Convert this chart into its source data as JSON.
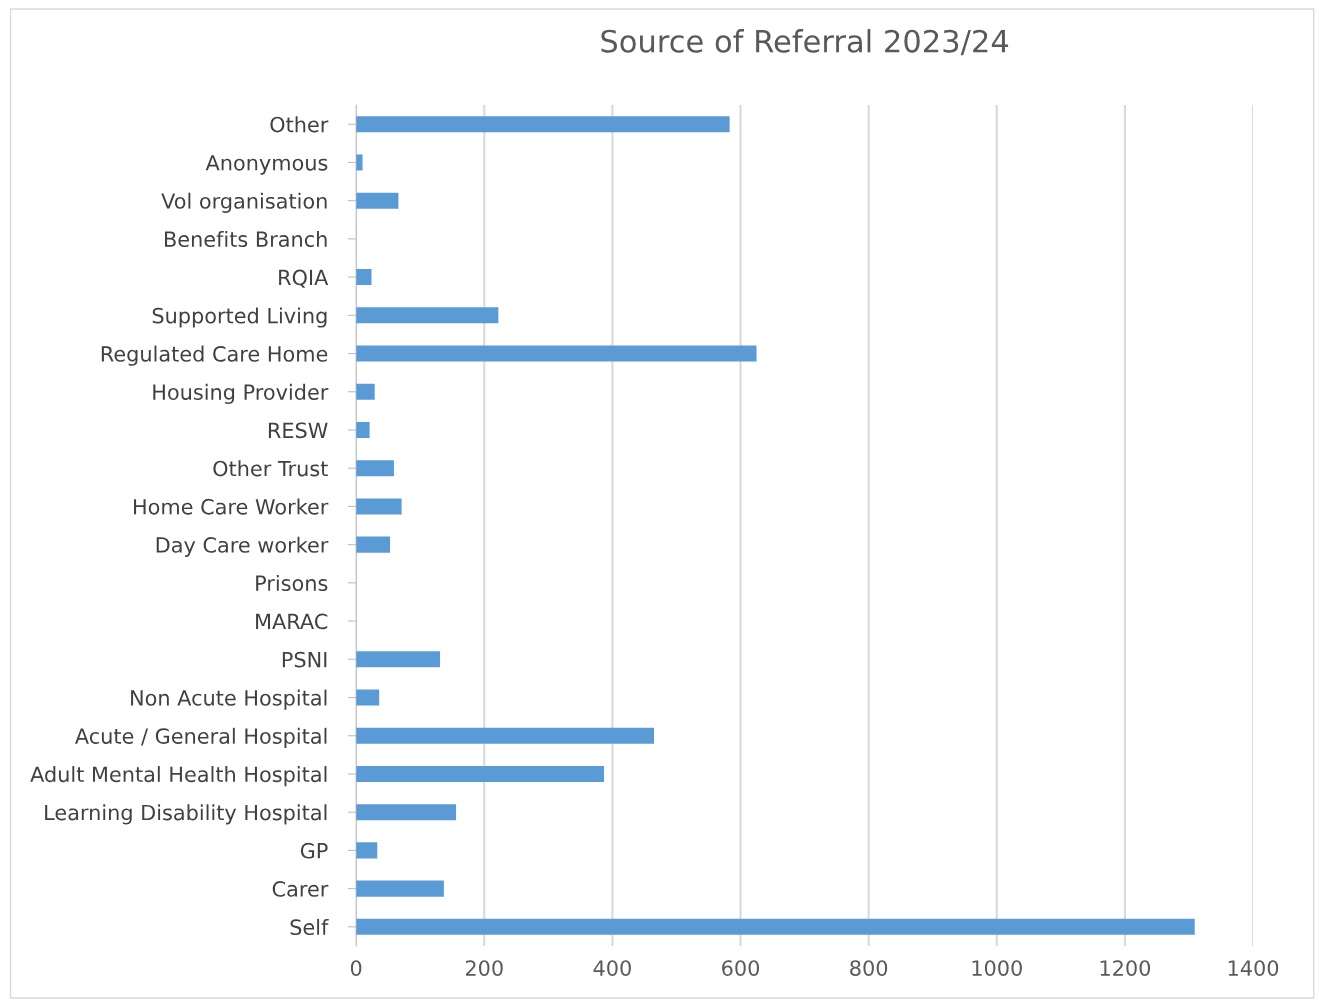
{
  "chart_data": {
    "type": "bar",
    "orientation": "horizontal",
    "title": "Source of Referral 2023/24",
    "categories": [
      "Other",
      "Anonymous",
      "Vol organisation",
      "Benefits Branch",
      "RQIA",
      "Supported Living",
      "Regulated Care Home",
      "Housing Provider",
      "RESW",
      "Other Trust",
      "Home Care Worker",
      "Day Care worker",
      "Prisons",
      "MARAC",
      "PSNI",
      "Non Acute Hospital",
      "Acute / General Hospital",
      "Adult Mental Health Hospital",
      "Learning Disability Hospital",
      "GP",
      "Carer",
      "Self"
    ],
    "values": [
      583,
      10,
      66,
      0,
      24,
      222,
      625,
      29,
      21,
      59,
      71,
      53,
      0,
      0,
      131,
      36,
      465,
      387,
      156,
      33,
      137,
      1309
    ],
    "color": "#5b9bd5",
    "xlim": [
      0,
      1400
    ],
    "xticks": [
      0,
      200,
      400,
      600,
      800,
      1000,
      1200,
      1400
    ],
    "grid": "x",
    "legend": false
  }
}
